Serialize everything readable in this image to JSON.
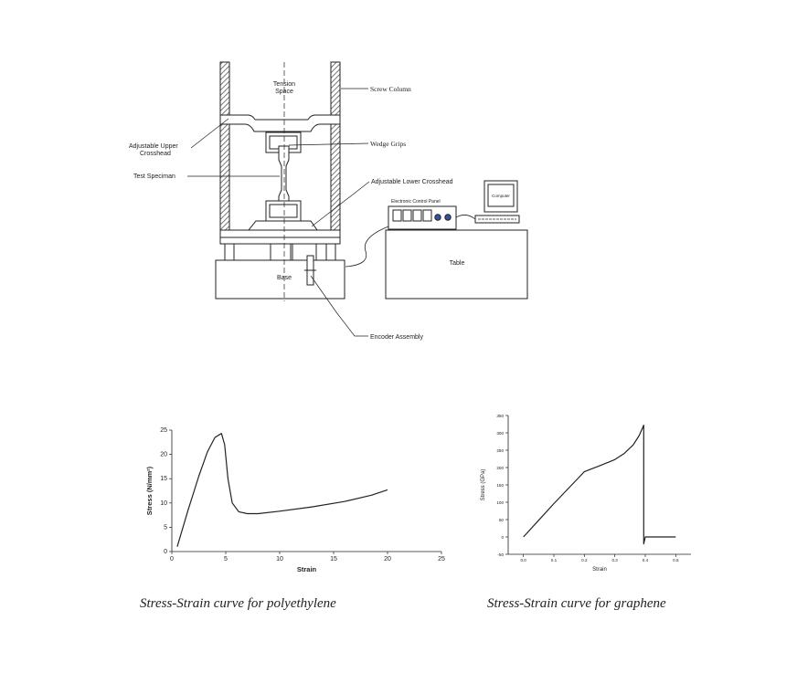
{
  "diagram": {
    "labels": {
      "tension_space_1": "Tension",
      "tension_space_2": "Space",
      "screw_column": "Screw Column",
      "upper_crosshead_1": "Adjustable Upper",
      "upper_crosshead_2": "Crosshead",
      "wedge_grips": "Wedge Grips",
      "test_specimen": "Test Speciman",
      "lower_crosshead": "Adjustable Lower Crosshead",
      "control_panel": "Electronic Control Panel",
      "computer": "Computer",
      "table": "Table",
      "base": "Base",
      "encoder": "Encoder Assembly"
    }
  },
  "chart_data": [
    {
      "type": "line",
      "xlabel": "Strain",
      "ylabel": "Stress (N/mm²)",
      "xlim": [
        0,
        25
      ],
      "ylim": [
        0,
        25
      ],
      "xticks": [
        0,
        5,
        10,
        15,
        20,
        25
      ],
      "yticks": [
        0,
        5,
        10,
        15,
        20,
        25
      ],
      "series": [
        {
          "x": [
            0.5,
            1.5,
            2.5,
            3.3,
            4.0,
            4.6,
            4.9,
            5.2,
            5.6,
            6.2,
            7.0,
            8.0,
            10.0,
            13.0,
            16.0,
            18.5,
            20.0
          ],
          "y": [
            1.0,
            8.5,
            15.5,
            20.5,
            23.5,
            24.3,
            22.0,
            15.0,
            10.0,
            8.2,
            7.8,
            7.8,
            8.3,
            9.2,
            10.3,
            11.6,
            12.7
          ]
        }
      ],
      "caption": "Stress-Strain curve for polyethylene"
    },
    {
      "type": "line",
      "xlabel": "Strain",
      "ylabel": "Stress (GPa)",
      "xlim": [
        -0.05,
        0.55
      ],
      "ylim": [
        -50,
        350
      ],
      "xticks": [
        0.0,
        0.1,
        0.2,
        0.3,
        0.4,
        0.5
      ],
      "xtick_labels": [
        "0.0",
        "0.1",
        "0.2",
        "0.3",
        "0.4",
        "0.5"
      ],
      "yticks": [
        -50,
        0,
        50,
        100,
        150,
        200,
        250,
        300,
        350
      ],
      "series": [
        {
          "x": [
            0.0,
            0.05,
            0.1,
            0.15,
            0.2,
            0.25,
            0.3,
            0.33,
            0.36,
            0.38,
            0.395,
            0.395,
            0.4,
            0.5
          ],
          "y": [
            0,
            48,
            96,
            142,
            188,
            205,
            223,
            240,
            265,
            292,
            322,
            -20,
            0,
            0
          ]
        }
      ],
      "caption": "Stress-Strain curve for graphene"
    }
  ]
}
